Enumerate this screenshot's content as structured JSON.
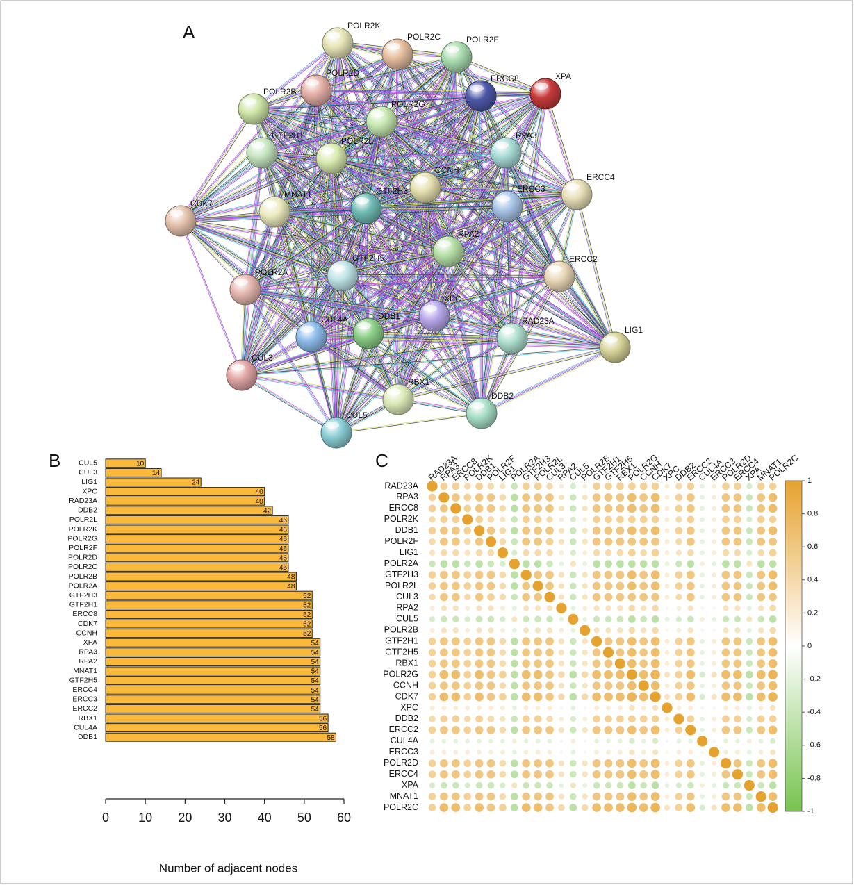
{
  "chart_data": [
    {
      "type": "network",
      "panel": "A",
      "nodes": [
        "POLR2K",
        "POLR2C",
        "POLR2F",
        "POLR2D",
        "POLR2B",
        "XPA",
        "ERCC8",
        "POLR2G",
        "GTF2H1",
        "POLR2L",
        "RPA3",
        "CCNH",
        "ERCC4",
        "CDK7",
        "MNAT1",
        "GTF2H3",
        "ERCC3",
        "RPA2",
        "GTF2H5",
        "ERCC2",
        "POLR2A",
        "XPC",
        "CUL4A",
        "DDB1",
        "RAD23A",
        "LIG1",
        "CUL3",
        "RBX1",
        "DDB2",
        "CUL5"
      ]
    },
    {
      "type": "barh",
      "panel": "B",
      "xlabel": "Number of adjacent nodes",
      "color": "#fbb93c",
      "categories": [
        "CUL5",
        "CUL3",
        "LIG1",
        "XPC",
        "RAD23A",
        "DDB2",
        "POLR2L",
        "POLR2K",
        "POLR2G",
        "POLR2F",
        "POLR2D",
        "POLR2C",
        "POLR2B",
        "POLR2A",
        "GTF2H3",
        "GTF2H1",
        "ERCC8",
        "CDK7",
        "CCNH",
        "XPA",
        "RPA3",
        "RPA2",
        "MNAT1",
        "GTF2H5",
        "ERCC4",
        "ERCC3",
        "ERCC2",
        "RBX1",
        "CUL4A",
        "DDB1"
      ],
      "values": [
        10,
        14,
        24,
        40,
        40,
        42,
        46,
        46,
        46,
        46,
        46,
        46,
        48,
        48,
        52,
        52,
        52,
        52,
        52,
        54,
        54,
        54,
        54,
        54,
        54,
        54,
        54,
        56,
        56,
        58
      ],
      "xlim": [
        0,
        60
      ],
      "xticks": [
        0,
        10,
        20,
        30,
        40,
        50,
        60
      ]
    },
    {
      "type": "corrplot",
      "panel": "C",
      "colorscale": [
        "#77c34f",
        "#ffffff",
        "#e6a22e"
      ],
      "zlim": [
        -1,
        1
      ],
      "zticks": [
        1,
        0.8,
        0.6,
        0.4,
        0.2,
        0,
        -0.2,
        -0.4,
        -0.6,
        -0.8,
        -1
      ],
      "labels": [
        "RAD23A",
        "RPA3",
        "ERCC8",
        "POLR2K",
        "DDB1",
        "POLR2F",
        "LIG1",
        "POLR2A",
        "GTF2H3",
        "POLR2L",
        "CUL3",
        "RPA2",
        "CUL5",
        "POLR2B",
        "GTF2H1",
        "GTF2H5",
        "RBX1",
        "POLR2G",
        "CCNH",
        "CDK7",
        "XPC",
        "DDB2",
        "ERCC2",
        "CUL4A",
        "ERCC3",
        "POLR2D",
        "ERCC4",
        "XPA",
        "MNAT1",
        "POLR2C"
      ],
      "values": [
        [
          1,
          0.5,
          0.5,
          0.4,
          0.5,
          0.4,
          0.3,
          -0.4,
          0.5,
          0.5,
          0.4,
          0.2,
          -0.3,
          0.2,
          0.5,
          0.5,
          0.5,
          0.5,
          0.5,
          0.5,
          0.2,
          0.4,
          0.5,
          -0.2,
          0.2,
          0.5,
          0.5,
          -0.3,
          0.5,
          0.5
        ],
        [
          0.5,
          1,
          0.6,
          0.5,
          0.6,
          0.6,
          0.4,
          -0.5,
          0.6,
          0.6,
          0.6,
          0.3,
          -0.4,
          0.3,
          0.6,
          0.6,
          0.6,
          0.7,
          0.6,
          0.7,
          0.2,
          0.5,
          0.6,
          -0.2,
          0.2,
          0.6,
          0.6,
          -0.4,
          0.6,
          0.7
        ],
        [
          0.5,
          0.6,
          1,
          0.5,
          0.6,
          0.6,
          0.4,
          -0.5,
          0.6,
          0.6,
          0.6,
          0.3,
          -0.4,
          0.3,
          0.6,
          0.6,
          0.6,
          0.7,
          0.6,
          0.7,
          0.2,
          0.5,
          0.6,
          -0.2,
          0.2,
          0.6,
          0.6,
          -0.4,
          0.6,
          0.7
        ],
        [
          0.4,
          0.5,
          0.5,
          1,
          0.5,
          0.4,
          0.3,
          -0.4,
          0.5,
          0.5,
          0.4,
          0.2,
          -0.3,
          0.2,
          0.5,
          0.5,
          0.5,
          0.5,
          0.5,
          0.5,
          0.2,
          0.4,
          0.5,
          -0.2,
          0.2,
          0.5,
          0.5,
          -0.3,
          0.5,
          0.5
        ],
        [
          0.5,
          0.6,
          0.6,
          0.5,
          1,
          0.6,
          0.4,
          -0.5,
          0.6,
          0.6,
          0.6,
          0.3,
          -0.4,
          0.3,
          0.6,
          0.6,
          0.6,
          0.7,
          0.6,
          0.7,
          0.2,
          0.5,
          0.6,
          -0.2,
          0.2,
          0.6,
          0.6,
          -0.4,
          0.6,
          0.7
        ],
        [
          0.4,
          0.6,
          0.6,
          0.4,
          0.6,
          1,
          0.4,
          -0.4,
          0.6,
          0.6,
          0.5,
          0.3,
          -0.4,
          0.3,
          0.6,
          0.6,
          0.6,
          0.6,
          0.6,
          0.6,
          0.2,
          0.4,
          0.6,
          -0.2,
          0.2,
          0.6,
          0.6,
          -0.4,
          0.6,
          0.6
        ],
        [
          0.3,
          0.4,
          0.4,
          0.3,
          0.4,
          0.4,
          1,
          -0.3,
          0.4,
          0.4,
          0.4,
          0.2,
          -0.3,
          0.2,
          0.4,
          0.4,
          0.4,
          0.5,
          0.4,
          0.5,
          0.2,
          0.3,
          0.4,
          -0.2,
          0.2,
          0.4,
          0.4,
          -0.3,
          0.4,
          0.5
        ],
        [
          -0.4,
          -0.5,
          -0.5,
          -0.4,
          -0.5,
          -0.4,
          -0.3,
          1,
          -0.5,
          -0.5,
          -0.4,
          -0.2,
          0.3,
          -0.2,
          -0.5,
          -0.5,
          -0.5,
          -0.5,
          -0.5,
          -0.5,
          -0.2,
          -0.4,
          -0.5,
          0.2,
          -0.2,
          -0.5,
          -0.5,
          0.3,
          -0.5,
          -0.5
        ],
        [
          0.5,
          0.6,
          0.6,
          0.5,
          0.6,
          0.6,
          0.4,
          -0.5,
          1,
          0.6,
          0.6,
          0.3,
          -0.4,
          0.3,
          0.6,
          0.6,
          0.6,
          0.7,
          0.6,
          0.7,
          0.2,
          0.5,
          0.6,
          -0.2,
          0.2,
          0.6,
          0.6,
          -0.4,
          0.6,
          0.7
        ],
        [
          0.5,
          0.6,
          0.6,
          0.5,
          0.6,
          0.6,
          0.4,
          -0.5,
          0.6,
          1,
          0.6,
          0.3,
          -0.4,
          0.3,
          0.6,
          0.6,
          0.6,
          0.7,
          0.6,
          0.7,
          0.2,
          0.5,
          0.6,
          -0.2,
          0.2,
          0.6,
          0.6,
          -0.4,
          0.6,
          0.7
        ],
        [
          0.4,
          0.6,
          0.6,
          0.4,
          0.6,
          0.5,
          0.4,
          -0.4,
          0.6,
          0.6,
          1,
          0.3,
          -0.4,
          0.3,
          0.6,
          0.6,
          0.6,
          0.6,
          0.6,
          0.6,
          0.2,
          0.4,
          0.6,
          -0.2,
          0.2,
          0.6,
          0.6,
          -0.4,
          0.6,
          0.6
        ],
        [
          0.2,
          0.3,
          0.3,
          0.2,
          0.3,
          0.3,
          0.2,
          -0.2,
          0.3,
          0.3,
          0.3,
          1,
          -0.2,
          0.2,
          0.3,
          0.3,
          0.3,
          0.4,
          0.3,
          0.4,
          0.1,
          0.2,
          0.3,
          -0.1,
          0.1,
          0.3,
          0.3,
          -0.2,
          0.3,
          0.4
        ],
        [
          -0.3,
          -0.4,
          -0.4,
          -0.3,
          -0.4,
          -0.4,
          -0.3,
          0.3,
          -0.4,
          -0.4,
          -0.4,
          -0.2,
          1,
          -0.2,
          -0.4,
          -0.4,
          -0.4,
          -0.5,
          -0.4,
          -0.5,
          -0.2,
          -0.3,
          -0.4,
          0.2,
          -0.2,
          -0.4,
          -0.4,
          0.3,
          -0.4,
          -0.5
        ],
        [
          0.2,
          0.3,
          0.3,
          0.2,
          0.3,
          0.3,
          0.2,
          -0.2,
          0.3,
          0.3,
          0.3,
          0.2,
          -0.2,
          1,
          0.3,
          0.3,
          0.3,
          0.4,
          0.3,
          0.4,
          0.1,
          0.2,
          0.3,
          -0.1,
          0.1,
          0.3,
          0.3,
          -0.2,
          0.3,
          0.4
        ],
        [
          0.5,
          0.6,
          0.6,
          0.5,
          0.6,
          0.6,
          0.4,
          -0.5,
          0.6,
          0.6,
          0.6,
          0.3,
          -0.4,
          0.3,
          1,
          0.6,
          0.6,
          0.7,
          0.6,
          0.7,
          0.2,
          0.5,
          0.6,
          -0.2,
          0.2,
          0.6,
          0.6,
          -0.4,
          0.6,
          0.7
        ],
        [
          0.5,
          0.6,
          0.6,
          0.5,
          0.6,
          0.6,
          0.4,
          -0.5,
          0.6,
          0.6,
          0.6,
          0.3,
          -0.4,
          0.3,
          0.6,
          1,
          0.6,
          0.7,
          0.6,
          0.7,
          0.2,
          0.5,
          0.6,
          -0.2,
          0.2,
          0.6,
          0.6,
          -0.4,
          0.6,
          0.7
        ],
        [
          0.5,
          0.6,
          0.6,
          0.5,
          0.6,
          0.6,
          0.4,
          -0.5,
          0.6,
          0.6,
          0.6,
          0.3,
          -0.4,
          0.3,
          0.6,
          0.6,
          1,
          0.7,
          0.6,
          0.7,
          0.2,
          0.5,
          0.6,
          -0.2,
          0.2,
          0.6,
          0.6,
          -0.4,
          0.6,
          0.7
        ],
        [
          0.5,
          0.7,
          0.7,
          0.5,
          0.7,
          0.6,
          0.5,
          -0.5,
          0.7,
          0.7,
          0.6,
          0.4,
          -0.5,
          0.4,
          0.7,
          0.7,
          0.7,
          1,
          0.7,
          0.8,
          0.3,
          0.5,
          0.7,
          -0.3,
          0.3,
          0.7,
          0.7,
          -0.5,
          0.7,
          0.8
        ],
        [
          0.5,
          0.6,
          0.6,
          0.5,
          0.6,
          0.6,
          0.4,
          -0.5,
          0.6,
          0.6,
          0.6,
          0.3,
          -0.4,
          0.3,
          0.6,
          0.6,
          0.6,
          0.7,
          1,
          0.7,
          0.2,
          0.5,
          0.6,
          -0.2,
          0.2,
          0.6,
          0.6,
          -0.4,
          0.6,
          0.7
        ],
        [
          0.5,
          0.7,
          0.7,
          0.5,
          0.7,
          0.6,
          0.5,
          -0.5,
          0.7,
          0.7,
          0.6,
          0.4,
          -0.5,
          0.4,
          0.7,
          0.7,
          0.7,
          0.8,
          0.7,
          1,
          0.3,
          0.5,
          0.7,
          -0.3,
          0.3,
          0.7,
          0.7,
          -0.5,
          0.7,
          0.8
        ],
        [
          0.2,
          0.2,
          0.2,
          0.2,
          0.2,
          0.2,
          0.2,
          -0.2,
          0.2,
          0.2,
          0.2,
          0.1,
          -0.2,
          0.1,
          0.2,
          0.2,
          0.2,
          0.3,
          0.2,
          0.3,
          1,
          0.2,
          0.2,
          -0.1,
          0.1,
          0.2,
          0.2,
          -0.2,
          0.2,
          0.3
        ],
        [
          0.4,
          0.5,
          0.5,
          0.4,
          0.5,
          0.4,
          0.3,
          -0.4,
          0.5,
          0.5,
          0.4,
          0.2,
          -0.3,
          0.2,
          0.5,
          0.5,
          0.5,
          0.5,
          0.5,
          0.5,
          0.2,
          1,
          0.5,
          -0.2,
          0.2,
          0.5,
          0.5,
          -0.3,
          0.5,
          0.5
        ],
        [
          0.5,
          0.6,
          0.6,
          0.5,
          0.6,
          0.6,
          0.4,
          -0.5,
          0.6,
          0.6,
          0.6,
          0.3,
          -0.4,
          0.3,
          0.6,
          0.6,
          0.6,
          0.7,
          0.6,
          0.7,
          0.2,
          0.5,
          1,
          -0.2,
          0.2,
          0.6,
          0.6,
          -0.4,
          0.6,
          0.7
        ],
        [
          -0.2,
          -0.2,
          -0.2,
          -0.2,
          -0.2,
          -0.2,
          -0.2,
          0.2,
          -0.2,
          -0.2,
          -0.2,
          -0.1,
          0.2,
          -0.1,
          -0.2,
          -0.2,
          -0.2,
          -0.3,
          -0.2,
          -0.3,
          -0.1,
          -0.2,
          -0.2,
          1,
          -0.1,
          -0.2,
          -0.2,
          0.2,
          -0.2,
          -0.3
        ],
        [
          0.2,
          0.2,
          0.2,
          0.2,
          0.2,
          0.2,
          0.2,
          -0.2,
          0.2,
          0.2,
          0.2,
          0.1,
          -0.2,
          0.1,
          0.2,
          0.2,
          0.2,
          0.3,
          0.2,
          0.3,
          0.1,
          0.2,
          0.2,
          -0.1,
          1,
          0.2,
          0.2,
          -0.2,
          0.2,
          0.3
        ],
        [
          0.5,
          0.6,
          0.6,
          0.5,
          0.6,
          0.6,
          0.4,
          -0.5,
          0.6,
          0.6,
          0.6,
          0.3,
          -0.4,
          0.3,
          0.6,
          0.6,
          0.6,
          0.7,
          0.6,
          0.7,
          0.2,
          0.5,
          0.6,
          -0.2,
          0.2,
          1,
          0.6,
          -0.4,
          0.6,
          0.7
        ],
        [
          0.5,
          0.6,
          0.6,
          0.5,
          0.6,
          0.6,
          0.4,
          -0.5,
          0.6,
          0.6,
          0.6,
          0.3,
          -0.4,
          0.3,
          0.6,
          0.6,
          0.6,
          0.7,
          0.6,
          0.7,
          0.2,
          0.5,
          0.6,
          -0.2,
          0.2,
          0.6,
          1,
          -0.4,
          0.6,
          0.7
        ],
        [
          -0.3,
          -0.4,
          -0.4,
          -0.3,
          -0.4,
          -0.4,
          -0.3,
          0.3,
          -0.4,
          -0.4,
          -0.4,
          -0.2,
          0.3,
          -0.2,
          -0.4,
          -0.4,
          -0.4,
          -0.5,
          -0.4,
          -0.5,
          -0.2,
          -0.3,
          -0.4,
          0.2,
          -0.2,
          -0.4,
          -0.4,
          1,
          -0.4,
          -0.5
        ],
        [
          0.5,
          0.6,
          0.6,
          0.5,
          0.6,
          0.6,
          0.4,
          -0.5,
          0.6,
          0.6,
          0.6,
          0.3,
          -0.4,
          0.3,
          0.6,
          0.6,
          0.6,
          0.7,
          0.6,
          0.7,
          0.2,
          0.5,
          0.6,
          -0.2,
          0.2,
          0.6,
          0.6,
          -0.4,
          1,
          0.7
        ],
        [
          0.5,
          0.7,
          0.7,
          0.5,
          0.7,
          0.6,
          0.5,
          -0.5,
          0.7,
          0.7,
          0.6,
          0.4,
          -0.5,
          0.4,
          0.7,
          0.7,
          0.7,
          0.8,
          0.7,
          0.8,
          0.3,
          0.5,
          0.7,
          -0.3,
          0.3,
          0.7,
          0.7,
          -0.5,
          0.7,
          1
        ]
      ]
    }
  ]
}
